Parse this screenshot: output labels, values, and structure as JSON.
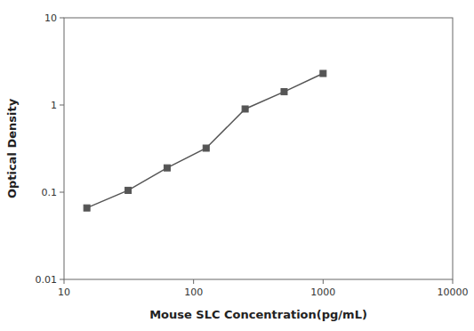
{
  "chart_data": {
    "type": "line",
    "x": [
      15,
      31.25,
      62.5,
      125,
      250,
      500,
      1000
    ],
    "series": [
      {
        "values": [
          0.066,
          0.105,
          0.19,
          0.32,
          0.9,
          1.42,
          2.3
        ],
        "color": "#555555",
        "marker": "square"
      }
    ],
    "xlim": [
      10,
      10000
    ],
    "ylim": [
      0.01,
      10
    ],
    "xticks": [
      10,
      100,
      1000,
      10000
    ],
    "yticks": [
      0.01,
      0.1,
      1,
      10
    ],
    "xlabel": "Mouse SLC Concentration(pg/mL)",
    "ylabel": "Optical Density",
    "log": true,
    "grid": false
  }
}
